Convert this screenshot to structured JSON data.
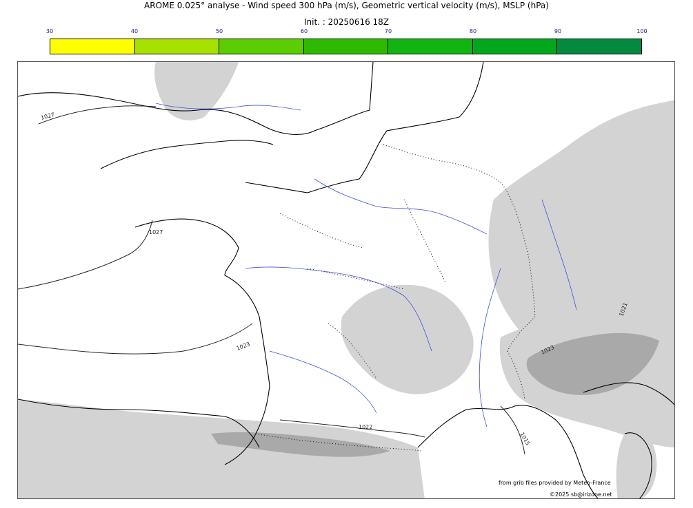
{
  "header": {
    "title": "AROME 0.025° analyse - Wind speed 300 hPa (m/s), Geometric vertical velocity (m/s), MSLP (hPa)",
    "init": "Init. : 20250616 18Z"
  },
  "colorbar": {
    "ticks": [
      "30",
      "40",
      "50",
      "60",
      "70",
      "80",
      "90",
      "100"
    ],
    "colors": [
      "#ffff00",
      "#a6e100",
      "#5ccd00",
      "#2dba00",
      "#12b412",
      "#02a81c",
      "#048a3e",
      "#077246"
    ]
  },
  "map": {
    "isobar_labels": [
      "1027",
      "1027",
      "1023",
      "1023",
      "1022",
      "1015",
      "1021"
    ],
    "colors": {
      "coast": "#000000",
      "rivers": "#3f4fdc",
      "shading_light": "#d3d3d3",
      "shading_dark": "#a9a9a9",
      "isobar": "#222222"
    }
  },
  "footer": {
    "provider": "from grib files provided by Meteo-France",
    "copyright": "©2025 sb@irizone.net"
  }
}
